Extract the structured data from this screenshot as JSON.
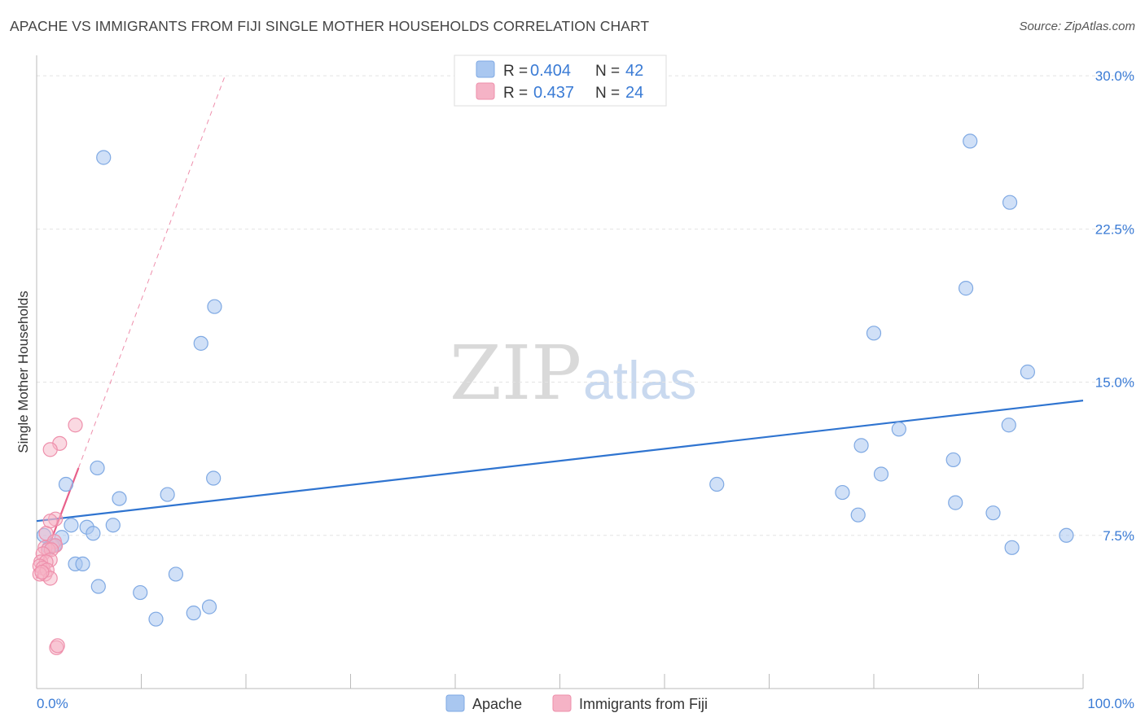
{
  "header": {
    "title": "APACHE VS IMMIGRANTS FROM FIJI SINGLE MOTHER HOUSEHOLDS CORRELATION CHART",
    "source": "Source: ZipAtlas.com"
  },
  "watermark": {
    "zip": "ZIP",
    "atlas": "atlas"
  },
  "legend_box": {
    "rows": [
      {
        "r_label": "R = ",
        "r_value": "0.404",
        "n_label": "N = ",
        "n_value": "42",
        "color": "#a9c7f0"
      },
      {
        "r_label": "R = ",
        "r_value": "0.437",
        "n_label": "N = ",
        "n_value": "24",
        "color": "#f5b3c6"
      }
    ]
  },
  "bottom_legend": {
    "apache": "Apache",
    "fiji": "Immigrants from Fiji"
  },
  "colors": {
    "apache_fill": "#a9c7f0",
    "apache_stroke": "#7fa9e3",
    "apache_line": "#2f74d0",
    "fiji_fill": "#f5b3c6",
    "fiji_stroke": "#ee8fab",
    "fiji_line": "#e8608a",
    "tick_text": "#3a7bd5",
    "grid": "#e3e3e3"
  },
  "chart_data": {
    "type": "scatter",
    "title": "APACHE VS IMMIGRANTS FROM FIJI SINGLE MOTHER HOUSEHOLDS CORRELATION CHART",
    "xlabel": "",
    "ylabel": "Single Mother Households",
    "xlim": [
      0,
      100
    ],
    "ylim": [
      0,
      31
    ],
    "x_tick_labels": [
      "0.0%",
      "100.0%"
    ],
    "y_ticks": [
      7.5,
      15.0,
      22.5,
      30.0
    ],
    "y_tick_labels": [
      "7.5%",
      "15.0%",
      "22.5%",
      "30.0%"
    ],
    "grid": true,
    "series": [
      {
        "name": "Apache",
        "r": 0.404,
        "n": 42,
        "points": [
          [
            6.4,
            26.0
          ],
          [
            17.0,
            18.7
          ],
          [
            15.7,
            16.9
          ],
          [
            5.8,
            10.8
          ],
          [
            2.8,
            10.0
          ],
          [
            16.9,
            10.3
          ],
          [
            7.9,
            9.3
          ],
          [
            12.5,
            9.5
          ],
          [
            3.3,
            8.0
          ],
          [
            4.8,
            7.9
          ],
          [
            7.3,
            8.0
          ],
          [
            5.4,
            7.6
          ],
          [
            0.7,
            7.5
          ],
          [
            2.4,
            7.4
          ],
          [
            1.7,
            7.0
          ],
          [
            1.2,
            6.9
          ],
          [
            3.7,
            6.1
          ],
          [
            4.4,
            6.1
          ],
          [
            13.3,
            5.6
          ],
          [
            5.9,
            5.0
          ],
          [
            9.9,
            4.7
          ],
          [
            16.5,
            4.0
          ],
          [
            15.0,
            3.7
          ],
          [
            11.4,
            3.4
          ],
          [
            89.2,
            26.8
          ],
          [
            93.0,
            23.8
          ],
          [
            88.8,
            19.6
          ],
          [
            80.0,
            17.4
          ],
          [
            94.7,
            15.5
          ],
          [
            82.4,
            12.7
          ],
          [
            92.9,
            12.9
          ],
          [
            78.8,
            11.9
          ],
          [
            87.6,
            11.2
          ],
          [
            80.7,
            10.5
          ],
          [
            65.0,
            10.0
          ],
          [
            77.0,
            9.6
          ],
          [
            87.8,
            9.1
          ],
          [
            91.4,
            8.6
          ],
          [
            78.5,
            8.5
          ],
          [
            98.4,
            7.5
          ],
          [
            93.2,
            6.9
          ],
          [
            1.5,
            7.0
          ]
        ],
        "trend": {
          "x": [
            0,
            100
          ],
          "y": [
            8.2,
            14.1
          ]
        }
      },
      {
        "name": "Immigrants from Fiji",
        "r": 0.437,
        "n": 24,
        "points": [
          [
            3.7,
            12.9
          ],
          [
            2.2,
            12.0
          ],
          [
            1.3,
            11.7
          ],
          [
            1.8,
            8.3
          ],
          [
            1.3,
            8.2
          ],
          [
            0.9,
            7.6
          ],
          [
            1.7,
            7.2
          ],
          [
            1.8,
            7.0
          ],
          [
            0.8,
            6.9
          ],
          [
            1.1,
            6.8
          ],
          [
            1.4,
            6.8
          ],
          [
            0.6,
            6.6
          ],
          [
            1.3,
            6.3
          ],
          [
            0.4,
            6.2
          ],
          [
            0.9,
            6.2
          ],
          [
            0.3,
            6.0
          ],
          [
            0.6,
            5.9
          ],
          [
            0.8,
            5.6
          ],
          [
            1.0,
            5.8
          ],
          [
            1.3,
            5.4
          ],
          [
            0.3,
            5.6
          ],
          [
            1.9,
            2.0
          ],
          [
            2.0,
            2.1
          ],
          [
            0.5,
            5.7
          ]
        ],
        "trend_solid": {
          "x": [
            0,
            4.0
          ],
          "y": [
            5.4,
            10.8
          ]
        },
        "trend_dashed": {
          "x": [
            4.0,
            18.0
          ],
          "y": [
            10.8,
            30.0
          ]
        }
      }
    ]
  }
}
